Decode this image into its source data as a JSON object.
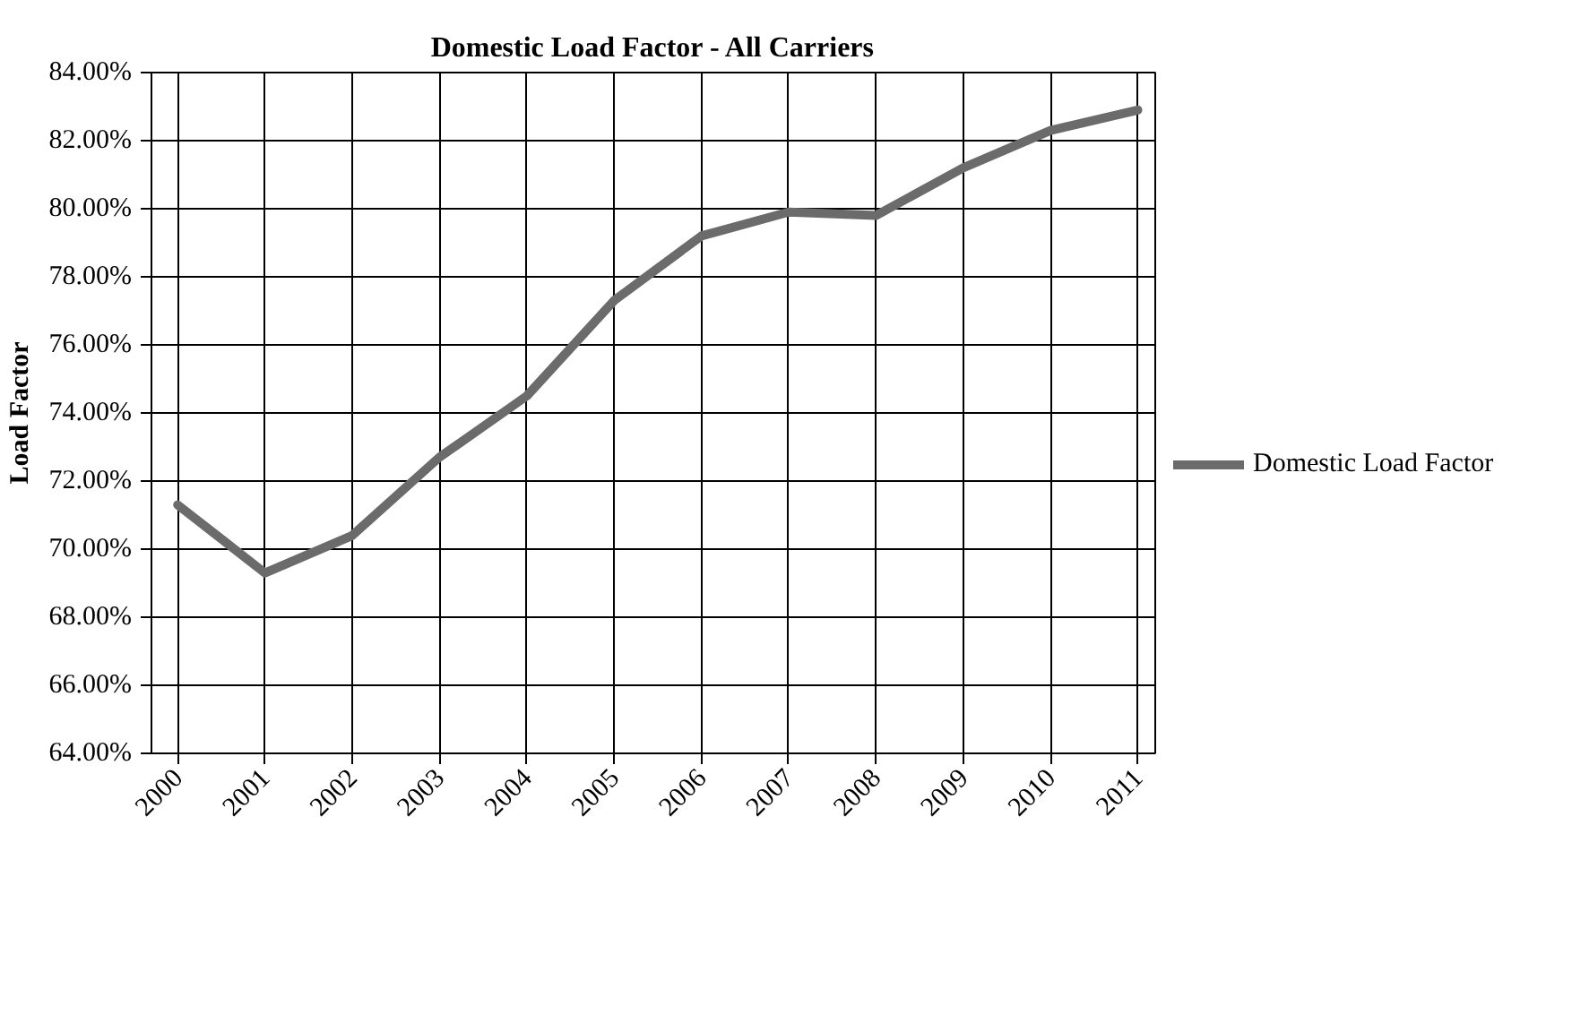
{
  "chart_data": {
    "type": "line",
    "title": "Domestic Load Factor - All Carriers",
    "ylabel": "Load Factor",
    "categories": [
      "2000",
      "2001",
      "2002",
      "2003",
      "2004",
      "2005",
      "2006",
      "2007",
      "2008",
      "2009",
      "2010",
      "2011"
    ],
    "series": [
      {
        "name": "Domestic Load Factor",
        "color": "#6b6b6b",
        "values": [
          71.3,
          69.3,
          70.4,
          72.7,
          74.5,
          77.3,
          79.2,
          79.9,
          79.8,
          81.2,
          82.3,
          82.9
        ]
      }
    ],
    "ylim": [
      64,
      84
    ],
    "yticks": [
      {
        "value": 64,
        "label": "64.00%"
      },
      {
        "value": 66,
        "label": "66.00%"
      },
      {
        "value": 68,
        "label": "68.00%"
      },
      {
        "value": 70,
        "label": "70.00%"
      },
      {
        "value": 72,
        "label": "72.00%"
      },
      {
        "value": 74,
        "label": "74.00%"
      },
      {
        "value": 76,
        "label": "76.00%"
      },
      {
        "value": 78,
        "label": "78.00%"
      },
      {
        "value": 80,
        "label": "80.00%"
      },
      {
        "value": 82,
        "label": "82.00%"
      },
      {
        "value": 84,
        "label": "84.00%"
      }
    ],
    "grid": true,
    "legend": "right",
    "marker": "none",
    "line_style": "solid"
  }
}
